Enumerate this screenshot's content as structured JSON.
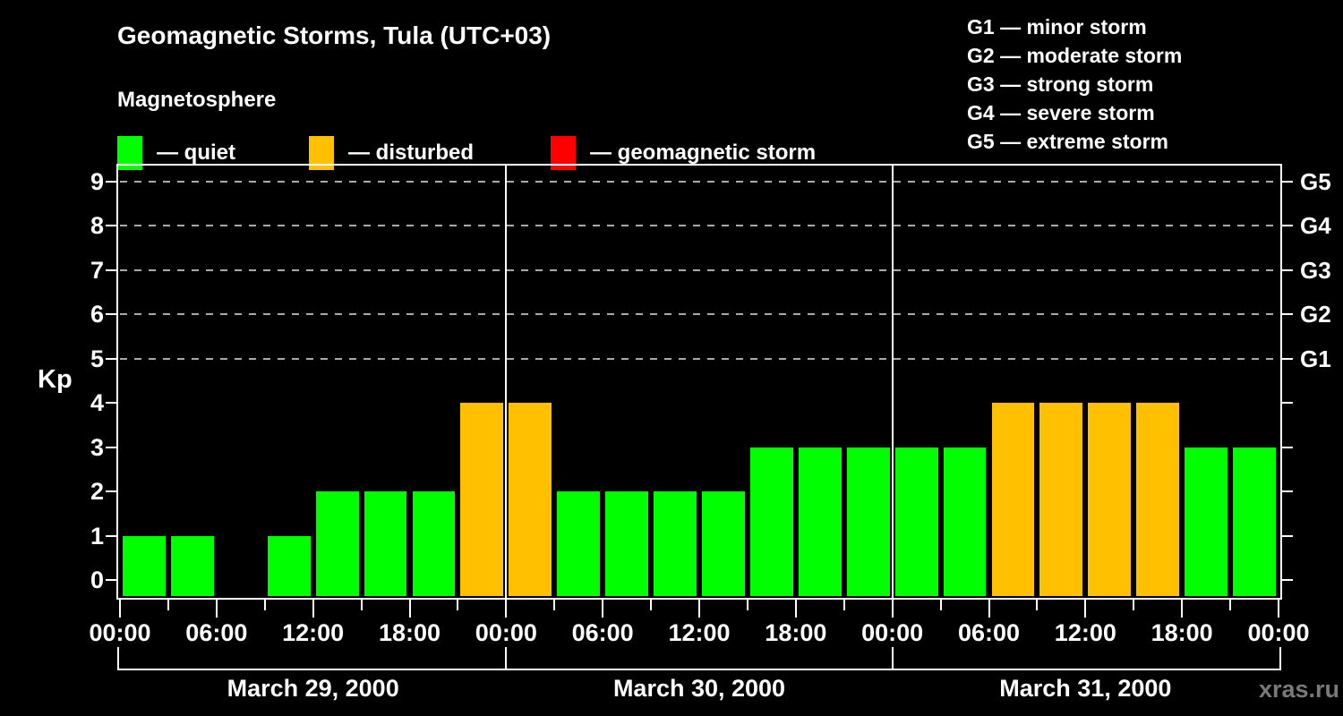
{
  "header": {
    "title": "Geomagnetic Storms, Tula (UTC+03)",
    "subtitle": "Magnetosphere"
  },
  "legend": {
    "items": [
      {
        "key": "quiet",
        "label": "— quiet",
        "color": "#00ff00"
      },
      {
        "key": "disturbed",
        "label": "— disturbed",
        "color": "#ffc000"
      },
      {
        "key": "storm",
        "label": "— geomagnetic storm",
        "color": "#ff0000"
      }
    ]
  },
  "gscale_legend": {
    "items": [
      "G1 — minor storm",
      "G2 — moderate storm",
      "G3 — strong storm",
      "G4 — severe storm",
      "G5 — extreme storm"
    ]
  },
  "watermark": "xras.ru",
  "colors": {
    "background": "#000000",
    "axis": "#ffffff",
    "grid": "#aaaaaa",
    "quiet": "#00ff00",
    "disturbed": "#ffc000",
    "storm": "#ff0000",
    "watermark": "#7a7a7a"
  },
  "chart_data": {
    "type": "bar",
    "title": "Geomagnetic Storms, Tula (UTC+03)",
    "ylabel": "Kp",
    "ylim": [
      0,
      9
    ],
    "y_ticks": [
      0,
      1,
      2,
      3,
      4,
      5,
      6,
      7,
      8,
      9
    ],
    "hours_per_bar": 3,
    "x_tick_step_hours": 3,
    "x_label_step_hours": 6,
    "x_tick_labels": [
      "00:00",
      "06:00",
      "12:00",
      "18:00",
      "00:00",
      "06:00",
      "12:00",
      "18:00",
      "00:00",
      "06:00",
      "12:00",
      "18:00",
      "00:00"
    ],
    "right_axis_labels": [
      {
        "kp": 5,
        "label": "G1"
      },
      {
        "kp": 6,
        "label": "G2"
      },
      {
        "kp": 7,
        "label": "G3"
      },
      {
        "kp": 8,
        "label": "G4"
      },
      {
        "kp": 9,
        "label": "G5"
      }
    ],
    "grid_levels_kp": [
      5,
      6,
      7,
      8,
      9
    ],
    "color_rule": {
      "quiet_max_kp": 3,
      "disturbed_max_kp": 4
    },
    "days": [
      {
        "label": "March 29, 2000",
        "values": [
          1,
          1,
          0,
          1,
          2,
          2,
          2,
          4
        ]
      },
      {
        "label": "March 30, 2000",
        "values": [
          4,
          2,
          2,
          2,
          2,
          3,
          3,
          3
        ]
      },
      {
        "label": "March 31, 2000",
        "values": [
          3,
          3,
          4,
          4,
          4,
          4,
          3,
          3
        ]
      }
    ]
  }
}
